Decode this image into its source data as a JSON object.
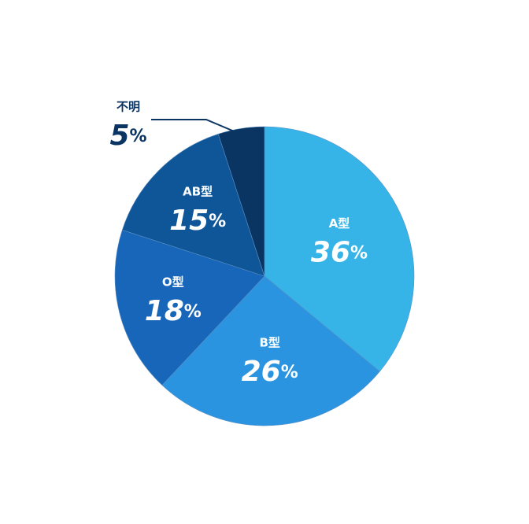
{
  "chart_data": {
    "type": "pie",
    "categories": [
      "A型",
      "B型",
      "O型",
      "AB型",
      "不明"
    ],
    "values": [
      36,
      26,
      18,
      15,
      5
    ],
    "value_labels": [
      "36%",
      "26%",
      "18%",
      "15%",
      "5%"
    ],
    "colors": [
      "#36b4e8",
      "#2b94e0",
      "#1766b9",
      "#0f5698",
      "#0a3462"
    ]
  }
}
